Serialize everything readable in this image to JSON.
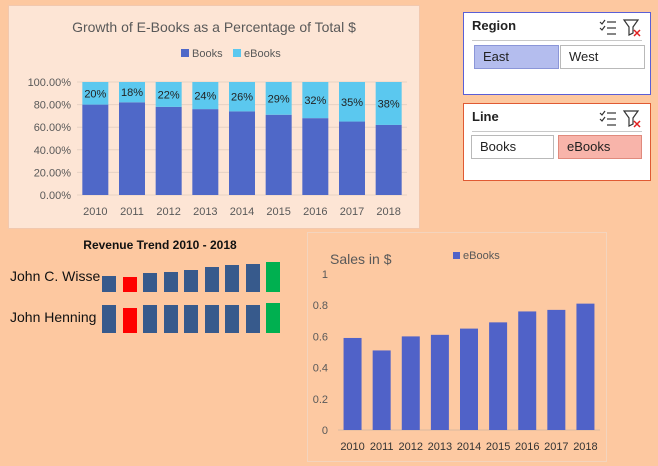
{
  "chart1": {
    "title": "Growth of E-Books as a Percentage of Total $",
    "legend": [
      "Books",
      "eBooks"
    ],
    "categories": [
      "2010",
      "2011",
      "2012",
      "2013",
      "2014",
      "2015",
      "2016",
      "2017",
      "2018"
    ],
    "ebooks_pct": [
      20,
      18,
      22,
      24,
      26,
      29,
      32,
      35,
      38
    ],
    "labels": [
      "20%",
      "18%",
      "22%",
      "24%",
      "26%",
      "29%",
      "32%",
      "35%",
      "38%"
    ],
    "yticks": [
      "0.00%",
      "20.00%",
      "40.00%",
      "60.00%",
      "80.00%",
      "100.00%"
    ],
    "colors": {
      "books": "#4f68c8",
      "ebooks": "#5bc8ef"
    }
  },
  "chart2": {
    "title": "Sales in $",
    "legend": "eBooks",
    "categories": [
      "2010",
      "2011",
      "2012",
      "2013",
      "2014",
      "2015",
      "2016",
      "2017",
      "2018"
    ],
    "values": [
      0.59,
      0.51,
      0.6,
      0.61,
      0.65,
      0.69,
      0.76,
      0.77,
      0.81
    ],
    "yticks": [
      "0",
      "0.2",
      "0.4",
      "0.6",
      "0.8",
      "1"
    ],
    "color": "#5062c8"
  },
  "slicer_region": {
    "title": "Region",
    "items": [
      {
        "label": "East",
        "selected": true
      },
      {
        "label": "West",
        "selected": false
      }
    ]
  },
  "slicer_line": {
    "title": "Line",
    "items": [
      {
        "label": "Books",
        "selected": false
      },
      {
        "label": "eBooks",
        "selected": true
      }
    ]
  },
  "sparklines": {
    "title": "Revenue Trend 2010 - 2018",
    "rows": [
      {
        "name": "John C. Wisse",
        "bars": [
          0.55,
          0.5,
          0.62,
          0.68,
          0.75,
          0.82,
          0.9,
          0.95,
          1.0
        ],
        "colors": [
          "#375a8c",
          "#ff0000",
          "#375a8c",
          "#375a8c",
          "#375a8c",
          "#375a8c",
          "#375a8c",
          "#375a8c",
          "#00b050"
        ]
      },
      {
        "name": "John Henning",
        "bars": [
          0.95,
          0.82,
          0.95,
          0.95,
          0.95,
          0.95,
          0.95,
          0.95,
          1.0
        ],
        "colors": [
          "#375a8c",
          "#ff0000",
          "#375a8c",
          "#375a8c",
          "#375a8c",
          "#375a8c",
          "#375a8c",
          "#375a8c",
          "#00b050"
        ]
      }
    ]
  },
  "chart_data": [
    {
      "type": "bar",
      "stacked": true,
      "title": "Growth of E-Books as a Percentage of Total $",
      "categories": [
        "2010",
        "2011",
        "2012",
        "2013",
        "2014",
        "2015",
        "2016",
        "2017",
        "2018"
      ],
      "series": [
        {
          "name": "Books",
          "values": [
            0.8,
            0.82,
            0.78,
            0.76,
            0.74,
            0.71,
            0.68,
            0.65,
            0.62
          ]
        },
        {
          "name": "eBooks",
          "values": [
            0.2,
            0.18,
            0.22,
            0.24,
            0.26,
            0.29,
            0.32,
            0.35,
            0.38
          ]
        }
      ],
      "ylim": [
        0,
        1
      ],
      "legend": "top"
    },
    {
      "type": "bar",
      "title": "Sales in $",
      "categories": [
        "2010",
        "2011",
        "2012",
        "2013",
        "2014",
        "2015",
        "2016",
        "2017",
        "2018"
      ],
      "series": [
        {
          "name": "eBooks",
          "values": [
            0.59,
            0.51,
            0.6,
            0.61,
            0.65,
            0.69,
            0.76,
            0.77,
            0.81
          ]
        }
      ],
      "ylim": [
        0,
        1
      ],
      "legend": "top"
    }
  ]
}
